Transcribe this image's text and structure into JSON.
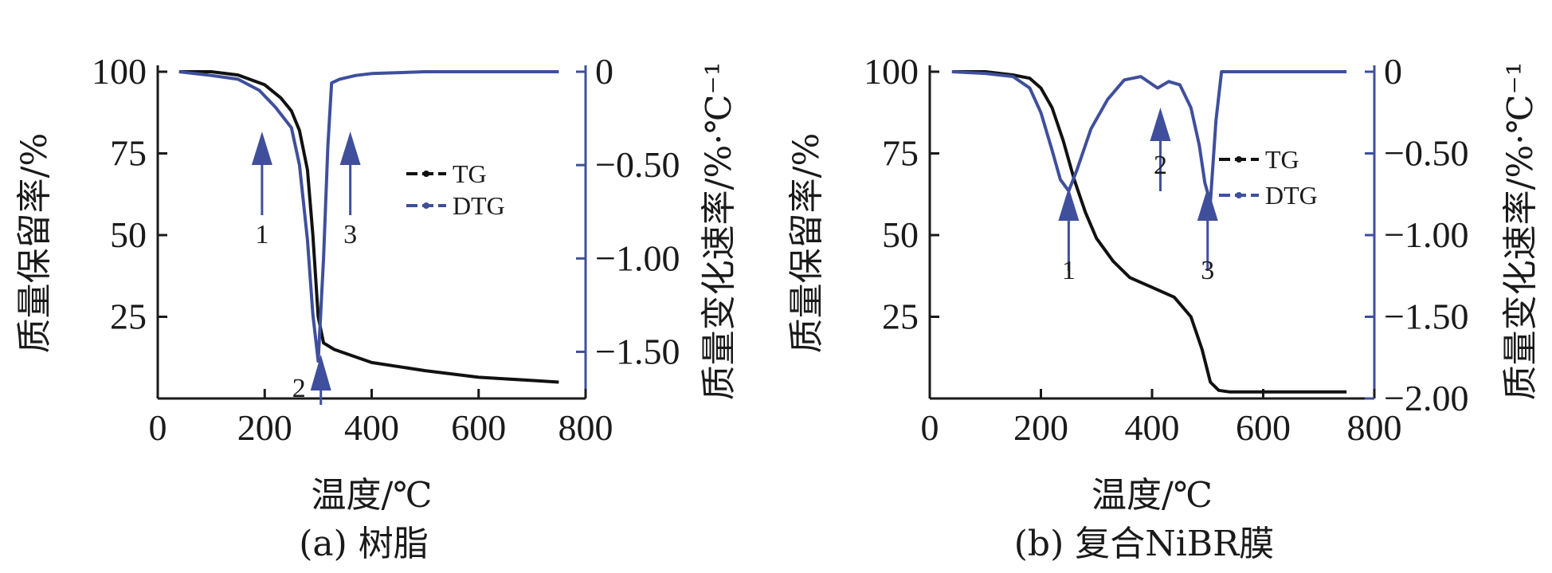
{
  "colors": {
    "tg": "#111111",
    "dtg": "#3f4f9c",
    "axis": "#1a1a1a",
    "right_axis": "#3f4f9c"
  },
  "chart_data": [
    {
      "type": "line",
      "caption": "(a) 树脂",
      "xlabel": "温度/℃",
      "ylabel": "质量保留率/%",
      "y2label": "质量变化速率/%·℃⁻¹",
      "xlim": [
        0,
        800
      ],
      "ylim": [
        0,
        100
      ],
      "y2lim": [
        -1.75,
        0
      ],
      "xticks": [
        "0",
        "200",
        "400",
        "600",
        "800"
      ],
      "yticks": [
        "25",
        "50",
        "75",
        "100"
      ],
      "y2ticks": [
        "0",
        "−0.50",
        "−1.00",
        "−1.50"
      ],
      "legend": {
        "position": "center-right",
        "entries": [
          "TG",
          "DTG"
        ]
      },
      "markers": [
        {
          "label": "1",
          "x": 195,
          "direction": "up"
        },
        {
          "label": "2",
          "x": 305,
          "direction": "up"
        },
        {
          "label": "3",
          "x": 360,
          "direction": "up"
        }
      ],
      "series": [
        {
          "name": "TG",
          "axis": "left",
          "x": [
            40,
            100,
            150,
            200,
            230,
            250,
            265,
            280,
            290,
            300,
            310,
            330,
            400,
            500,
            600,
            700,
            750
          ],
          "y": [
            100,
            100,
            99,
            96,
            92,
            88,
            82,
            70,
            50,
            25,
            17,
            15,
            11,
            8.5,
            6.5,
            5.5,
            5
          ]
        },
        {
          "name": "DTG",
          "axis": "right",
          "x": [
            40,
            100,
            150,
            190,
            220,
            250,
            265,
            280,
            290,
            300,
            310,
            318,
            325,
            340,
            370,
            400,
            500,
            600,
            700,
            750
          ],
          "y": [
            0,
            -0.02,
            -0.04,
            -0.1,
            -0.19,
            -0.3,
            -0.5,
            -0.9,
            -1.3,
            -1.55,
            -1.0,
            -0.4,
            -0.06,
            -0.04,
            -0.02,
            -0.01,
            0,
            0,
            0,
            0
          ]
        }
      ]
    },
    {
      "type": "line",
      "caption": "(b) 复合NiBR膜",
      "xlabel": "温度/℃",
      "ylabel": "质量保留率/%",
      "y2label": "质量变化速率/%·℃⁻¹",
      "xlim": [
        0,
        800
      ],
      "ylim": [
        0,
        100
      ],
      "y2lim": [
        -2.0,
        0
      ],
      "xticks": [
        "0",
        "200",
        "400",
        "600",
        "800"
      ],
      "yticks": [
        "25",
        "50",
        "75",
        "100"
      ],
      "y2ticks": [
        "0",
        "−0.50",
        "−1.00",
        "−1.50",
        "−2.00"
      ],
      "legend": {
        "position": "center-right",
        "entries": [
          "TG",
          "DTG"
        ]
      },
      "markers": [
        {
          "label": "1",
          "x": 250,
          "direction": "up"
        },
        {
          "label": "2",
          "x": 415,
          "direction": "up"
        },
        {
          "label": "3",
          "x": 500,
          "direction": "up"
        }
      ],
      "series": [
        {
          "name": "TG",
          "axis": "left",
          "x": [
            40,
            100,
            150,
            180,
            200,
            220,
            240,
            260,
            280,
            300,
            330,
            360,
            400,
            440,
            470,
            490,
            505,
            520,
            540,
            600,
            700,
            750
          ],
          "y": [
            100,
            100,
            99,
            98,
            95,
            89,
            79,
            67,
            57,
            49,
            42,
            37,
            34,
            31,
            25,
            15,
            5,
            2.5,
            2,
            2,
            2,
            2
          ]
        },
        {
          "name": "DTG",
          "axis": "right",
          "x": [
            40,
            100,
            150,
            180,
            200,
            220,
            235,
            250,
            265,
            290,
            320,
            350,
            380,
            410,
            430,
            450,
            470,
            485,
            495,
            505,
            515,
            525,
            540,
            600,
            700,
            750
          ],
          "y": [
            0,
            -0.01,
            -0.03,
            -0.1,
            -0.25,
            -0.48,
            -0.66,
            -0.73,
            -0.6,
            -0.35,
            -0.17,
            -0.05,
            -0.03,
            -0.1,
            -0.06,
            -0.08,
            -0.22,
            -0.45,
            -0.68,
            -0.8,
            -0.3,
            0,
            0,
            0,
            0,
            0
          ]
        }
      ]
    }
  ]
}
